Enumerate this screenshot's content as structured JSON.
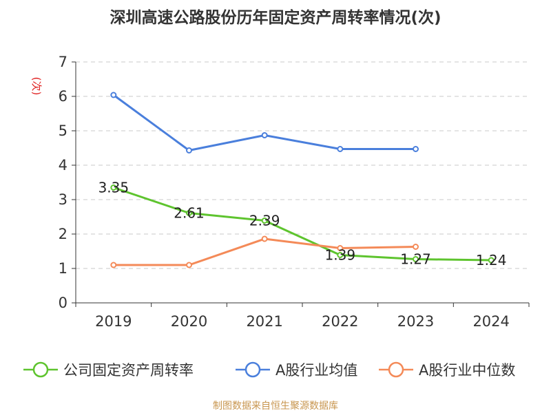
{
  "title": "深圳高速公路股份历年固定资产周转率情况(次)",
  "source": "制图数据来自恒生聚源数据库",
  "chart_data": {
    "type": "line",
    "title": "深圳高速公路股份历年固定资产周转率情况(次)",
    "ylabel": "(次)",
    "xlabel": "",
    "categories": [
      "2019",
      "2020",
      "2021",
      "2022",
      "2023",
      "2024"
    ],
    "ylim": [
      0,
      7
    ],
    "yticks": [
      0,
      1,
      2,
      3,
      4,
      5,
      6,
      7
    ],
    "grid": true,
    "legend_position": "bottom",
    "series": [
      {
        "name": "公司固定资产周转率",
        "color": "#5ec42e",
        "values": [
          3.35,
          2.61,
          2.39,
          1.39,
          1.27,
          1.24
        ],
        "labels": [
          "3.35",
          "2.61",
          "2.39",
          "1.39",
          "1.27",
          "1.24"
        ]
      },
      {
        "name": "A股行业均值",
        "color": "#4a7fdc",
        "values": [
          6.04,
          4.43,
          4.87,
          4.47,
          4.47,
          null
        ]
      },
      {
        "name": "A股行业中位数",
        "color": "#f48a58",
        "values": [
          1.1,
          1.1,
          1.86,
          1.59,
          1.63,
          null
        ]
      }
    ]
  }
}
